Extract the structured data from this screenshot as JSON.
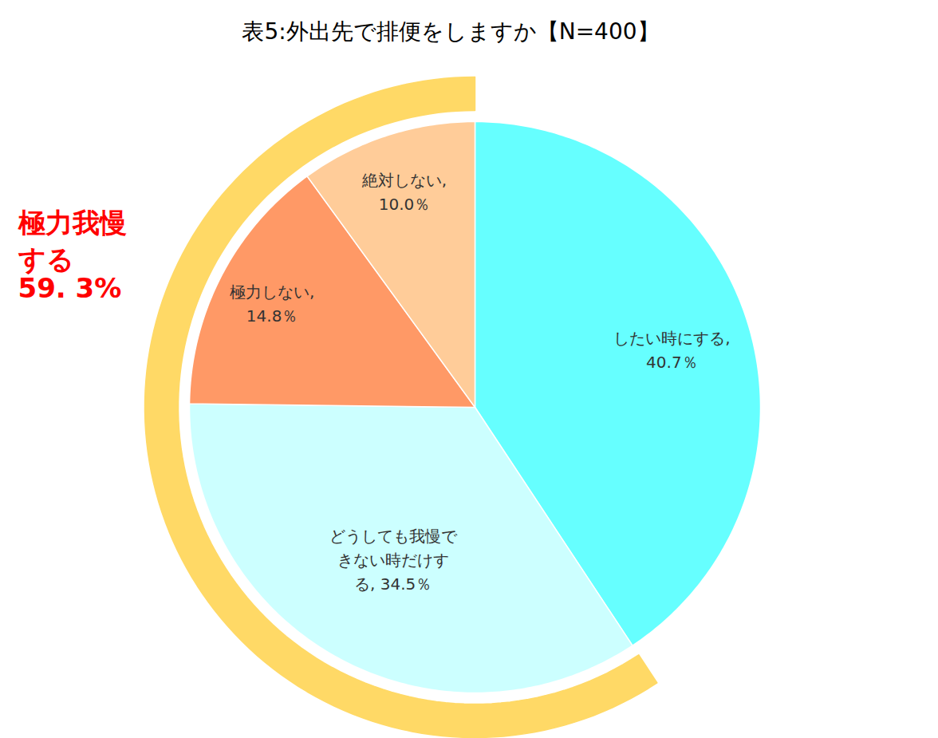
{
  "chart_data": {
    "type": "pie",
    "title": "表5:外出先で排便をしますか【N=400】",
    "categories": [
      "したい時にする",
      "どうしても我慢できない時だけする",
      "極力しない",
      "絶対しない"
    ],
    "values": [
      40.7,
      34.5,
      14.8,
      10.0
    ],
    "value_labels": [
      "したい時にする,\n40.7％",
      "どうしても我慢で\nきない時だけす\nる, 34.5％",
      "極力しない,\n14.8％",
      "絶対しない,\n10.0％"
    ],
    "colors": [
      "#66FFFF",
      "#CCFFFF",
      "#FF9966",
      "#FFCC99"
    ],
    "data_labels": true,
    "annotations": [
      {
        "text": "極力我慢\nする",
        "value": 59.3,
        "value_label": "59. 3%",
        "color": "#FFD966"
      }
    ]
  }
}
